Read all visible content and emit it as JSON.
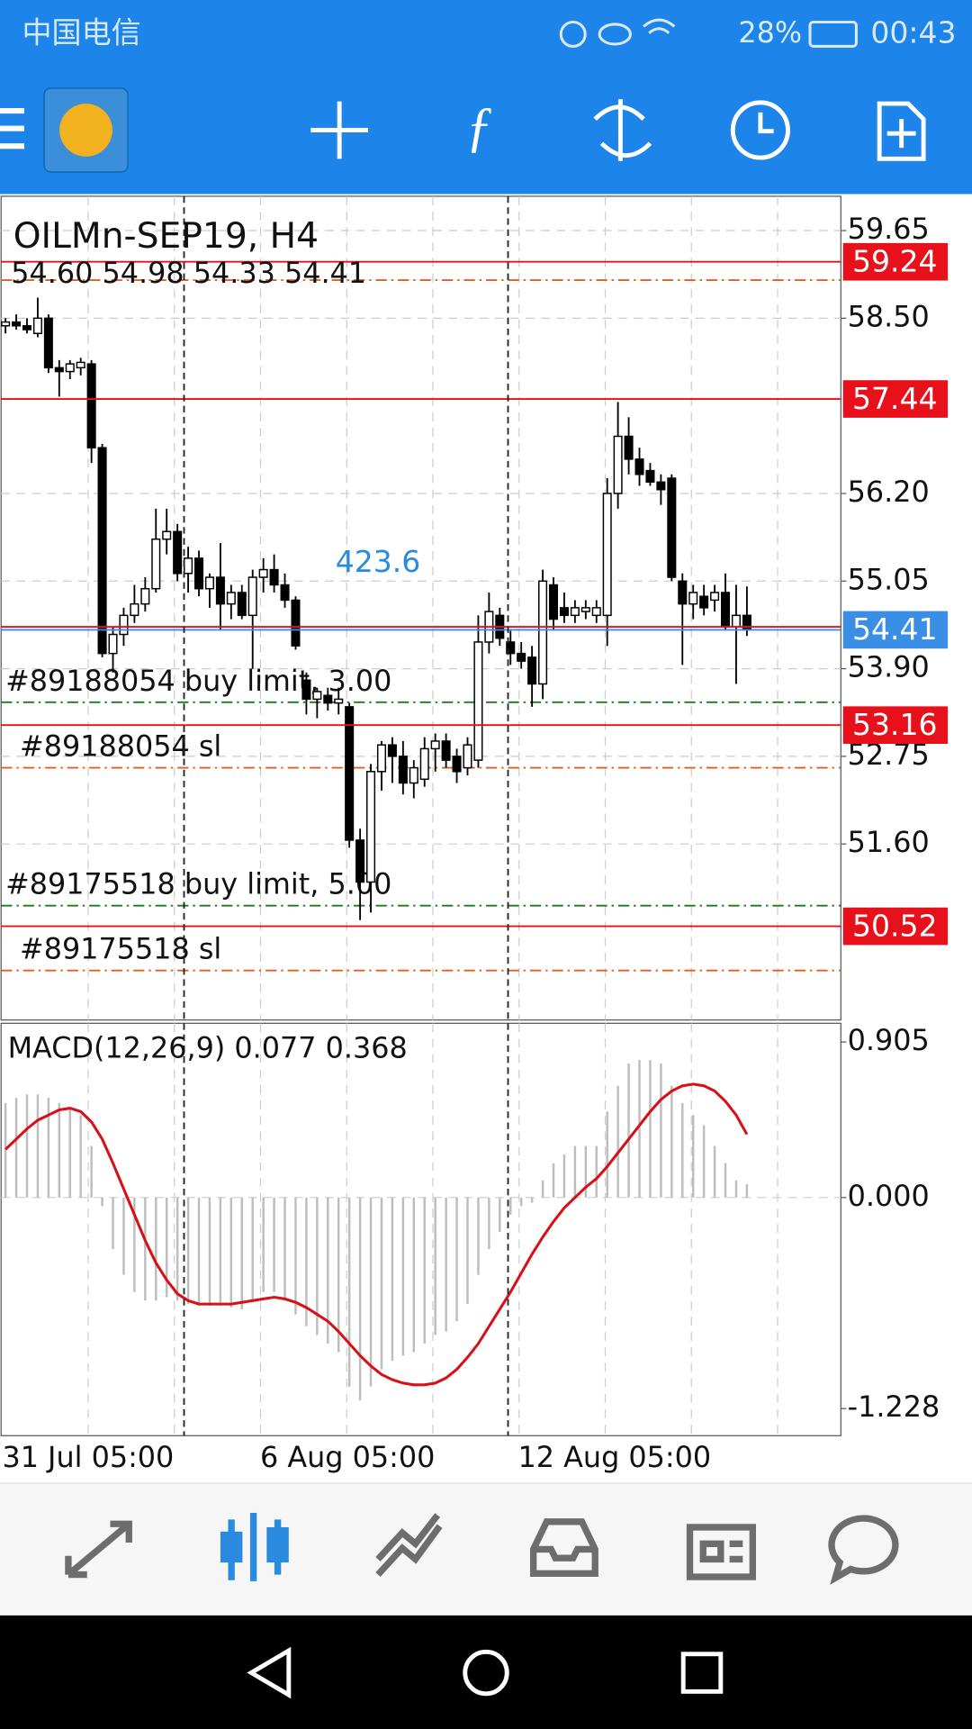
{
  "status_bar": {
    "carrier": "中国电信",
    "battery": "28%",
    "time": "00:43"
  },
  "chart_data": [
    {
      "type": "candlestick",
      "title": "OILMn-SEP19, H4",
      "ohlc_label": "54.60 54.98 54.33 54.41",
      "annotation": "423.6",
      "categories": [
        "31 Jul 05:00",
        null,
        null,
        null,
        null,
        null,
        null,
        null,
        null,
        null,
        null,
        null,
        null,
        null,
        null,
        null,
        null,
        null,
        null,
        null,
        null,
        null,
        null,
        null,
        "6 Aug 05:00",
        null,
        null,
        null,
        null,
        null,
        null,
        null,
        null,
        null,
        null,
        null,
        null,
        null,
        null,
        null,
        null,
        null,
        null,
        null,
        null,
        null,
        null,
        null,
        "12 Aug 05:00",
        null,
        null,
        null,
        null,
        null,
        null,
        null,
        null,
        null,
        null,
        null,
        null,
        null,
        null,
        null,
        null,
        null,
        null,
        null,
        null,
        null
      ],
      "open": [
        58.4,
        58.45,
        58.4,
        58.3,
        58.5,
        57.85,
        57.8,
        57.85,
        57.9,
        56.8,
        54.1,
        54.35,
        54.6,
        54.75,
        54.95,
        55.6,
        55.7,
        55.15,
        55.35,
        54.95,
        55.1,
        54.75,
        54.9,
        54.6,
        55.1,
        55.2,
        55.0,
        54.8,
        53.75,
        53.5,
        53.55,
        53.45,
        53.4,
        51.65,
        51.1,
        52.55,
        52.9,
        52.75,
        52.4,
        52.45,
        52.85,
        52.95,
        52.75,
        52.6,
        52.7,
        54.25,
        54.6,
        54.25,
        54.1,
        54.05,
        53.7,
        55.0,
        54.7,
        54.6,
        54.65,
        54.6,
        54.6,
        56.2,
        56.95,
        56.65,
        56.5,
        56.35,
        56.4,
        55.05,
        54.75,
        54.85,
        54.8,
        54.9,
        54.45,
        54.6
      ],
      "high": [
        58.5,
        58.55,
        58.5,
        58.77,
        58.55,
        57.95,
        57.95,
        57.98,
        57.95,
        56.85,
        54.45,
        54.7,
        55.0,
        55.1,
        56.0,
        56.0,
        55.8,
        55.5,
        55.45,
        55.15,
        55.55,
        55.0,
        55.0,
        55.2,
        55.35,
        55.4,
        55.15,
        54.85,
        53.85,
        53.65,
        53.65,
        53.65,
        53.45,
        51.8,
        52.65,
        52.95,
        53.0,
        52.95,
        52.7,
        53.0,
        53.05,
        53.05,
        52.85,
        53.0,
        54.6,
        54.9,
        54.7,
        54.4,
        54.25,
        54.2,
        55.2,
        55.1,
        54.9,
        54.8,
        54.8,
        54.8,
        56.4,
        57.4,
        57.2,
        56.8,
        56.6,
        56.45,
        56.45,
        55.15,
        55.0,
        55.0,
        55.0,
        55.15,
        55.0,
        54.98
      ],
      "low": [
        58.3,
        58.35,
        58.3,
        58.25,
        57.78,
        57.47,
        57.7,
        57.75,
        56.6,
        54.05,
        53.85,
        54.2,
        54.5,
        54.65,
        54.9,
        55.4,
        55.05,
        54.9,
        54.85,
        54.7,
        54.4,
        54.55,
        54.55,
        53.9,
        54.9,
        54.9,
        54.7,
        54.15,
        53.3,
        53.25,
        53.35,
        53.3,
        51.55,
        50.6,
        50.7,
        52.3,
        52.4,
        52.25,
        52.2,
        52.35,
        52.55,
        52.6,
        52.4,
        52.5,
        52.6,
        54.1,
        54.2,
        53.95,
        53.9,
        53.4,
        53.5,
        54.4,
        54.5,
        54.5,
        54.55,
        54.5,
        54.2,
        56.0,
        56.45,
        56.3,
        56.3,
        56.05,
        55.05,
        53.95,
        54.55,
        54.6,
        54.65,
        54.4,
        53.7,
        54.33
      ],
      "close": [
        58.45,
        58.4,
        58.35,
        58.5,
        57.85,
        57.8,
        57.9,
        57.92,
        56.8,
        54.1,
        54.35,
        54.6,
        54.75,
        54.95,
        55.6,
        55.7,
        55.15,
        55.35,
        54.95,
        55.1,
        54.75,
        54.9,
        54.6,
        55.1,
        55.2,
        55.0,
        54.8,
        54.2,
        53.5,
        53.6,
        53.45,
        53.5,
        51.65,
        51.1,
        52.55,
        52.9,
        52.75,
        52.4,
        52.6,
        52.85,
        52.95,
        52.7,
        52.55,
        52.9,
        54.25,
        54.65,
        54.3,
        54.1,
        54.0,
        53.7,
        55.05,
        54.55,
        54.6,
        54.7,
        54.7,
        54.7,
        56.2,
        56.95,
        56.65,
        56.45,
        56.35,
        56.25,
        55.1,
        54.75,
        54.9,
        54.7,
        54.9,
        54.45,
        54.6,
        54.41
      ],
      "ylim": [
        49.29,
        60.1
      ],
      "yticks": [
        59.65,
        {
          "value": 58.5,
          "label": "58.50"
        },
        {
          "value": 56.2,
          "label": "56.20"
        },
        55.05,
        {
          "value": 53.9,
          "label": "53.90"
        },
        52.75,
        {
          "value": 51.6,
          "label": "51.60"
        }
      ],
      "grid": true,
      "price_lines": [
        {
          "value": 59.24,
          "color": "#e8101a",
          "tag": true
        },
        {
          "value": 57.44,
          "color": "#e8101a",
          "tag": true
        },
        {
          "value": 54.45,
          "color": "#e8101a",
          "tag": false
        },
        {
          "value": 54.41,
          "color": "#3a8ee6",
          "tag": true
        },
        {
          "value": 53.16,
          "color": "#e8101a",
          "tag": true
        },
        {
          "value": 50.52,
          "color": "#e8101a",
          "tag": true
        }
      ],
      "order_lines": [
        {
          "value": 59.0,
          "color": "#e0601e"
        },
        {
          "label": "#89188054 buy limit, 3.00",
          "value": 53.46,
          "color": "#1e7a1e"
        },
        {
          "label": "#89188054 sl",
          "value": 52.6,
          "color": "#e0601e"
        },
        {
          "label": "#89175518 buy limit, 5.00",
          "value": 50.79,
          "color": "#1e7a1e"
        },
        {
          "label": "#89175518 sl",
          "value": 49.94,
          "color": "#e0601e"
        }
      ]
    },
    {
      "type": "macd",
      "title": "MACD(12,26,9) 0.077 0.368",
      "series": [
        {
          "color": "#bdbdbd",
          "values": [
            0.55,
            0.58,
            0.6,
            0.6,
            0.58,
            0.55,
            0.52,
            0.48,
            0.3,
            -0.05,
            -0.3,
            -0.45,
            -0.55,
            -0.6,
            -0.6,
            -0.58,
            -0.6,
            -0.62,
            -0.63,
            -0.63,
            -0.63,
            -0.64,
            -0.65,
            -0.6,
            -0.55,
            -0.55,
            -0.6,
            -0.68,
            -0.75,
            -0.8,
            -0.85,
            -0.9,
            -1.1,
            -1.18,
            -1.1,
            -1.0,
            -0.95,
            -0.92,
            -0.9,
            -0.85,
            -0.8,
            -0.78,
            -0.72,
            -0.62,
            -0.45,
            -0.3,
            -0.2,
            -0.1,
            -0.05,
            -0.03,
            0.1,
            0.2,
            0.25,
            0.3,
            0.3,
            0.3,
            0.5,
            0.65,
            0.78,
            0.8,
            0.8,
            0.78,
            0.65,
            0.55,
            0.48,
            0.42,
            0.3,
            0.2,
            0.1,
            0.077
          ]
        },
        {
          "color": "#d81018",
          "values": [
            0.28,
            0.34,
            0.4,
            0.45,
            0.48,
            0.51,
            0.52,
            0.5,
            0.44,
            0.34,
            0.2,
            0.05,
            -0.1,
            -0.25,
            -0.38,
            -0.48,
            -0.56,
            -0.6,
            -0.62,
            -0.62,
            -0.62,
            -0.62,
            -0.61,
            -0.6,
            -0.59,
            -0.58,
            -0.59,
            -0.61,
            -0.64,
            -0.68,
            -0.72,
            -0.78,
            -0.85,
            -0.92,
            -0.98,
            -1.03,
            -1.06,
            -1.08,
            -1.09,
            -1.09,
            -1.08,
            -1.05,
            -1.0,
            -0.93,
            -0.85,
            -0.75,
            -0.65,
            -0.55,
            -0.44,
            -0.33,
            -0.23,
            -0.14,
            -0.06,
            0.0,
            0.06,
            0.11,
            0.18,
            0.26,
            0.34,
            0.42,
            0.5,
            0.57,
            0.62,
            0.65,
            0.66,
            0.65,
            0.62,
            0.56,
            0.48,
            0.368
          ]
        }
      ],
      "ylim": [
        -1.386,
        1.014
      ],
      "yticks": [
        0.905,
        {
          "value": 0,
          "label": "0.000"
        },
        -1.228
      ]
    }
  ]
}
